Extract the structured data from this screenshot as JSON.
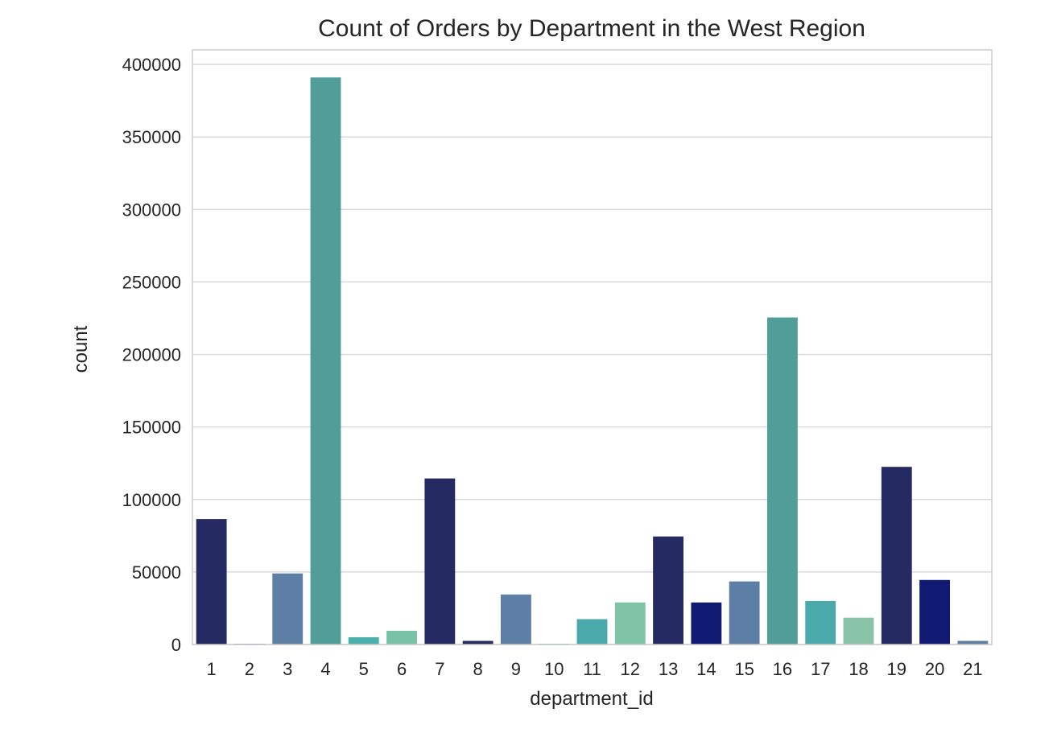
{
  "chart_data": {
    "type": "bar",
    "title": "Count of Orders by Department in the West Region",
    "xlabel": "department_id",
    "ylabel": "count",
    "ylim": [
      0,
      410000
    ],
    "yticks": [
      0,
      50000,
      100000,
      150000,
      200000,
      250000,
      300000,
      350000,
      400000
    ],
    "grid": true,
    "legend": "none",
    "categories": [
      "1",
      "2",
      "3",
      "4",
      "5",
      "6",
      "7",
      "8",
      "9",
      "10",
      "11",
      "12",
      "13",
      "14",
      "15",
      "16",
      "17",
      "18",
      "19",
      "20",
      "21"
    ],
    "values": [
      86500,
      500,
      49000,
      391000,
      5000,
      9500,
      114500,
      2500,
      34500,
      500,
      17500,
      29000,
      74500,
      29000,
      43500,
      225500,
      30000,
      18500,
      122500,
      44500,
      2500
    ],
    "colors": [
      "#252a62",
      "#4e5ea3",
      "#5d7fa6",
      "#519e99",
      "#49b0ae",
      "#79c2a8",
      "#252a62",
      "#252a62",
      "#5d7fa6",
      "#49b0ae",
      "#49a9ab",
      "#80c4a8",
      "#252a62",
      "#111a72",
      "#5d7fa6",
      "#519e99",
      "#49a9ab",
      "#88c2a8",
      "#252a62",
      "#111a72",
      "#5d7fa6"
    ]
  }
}
